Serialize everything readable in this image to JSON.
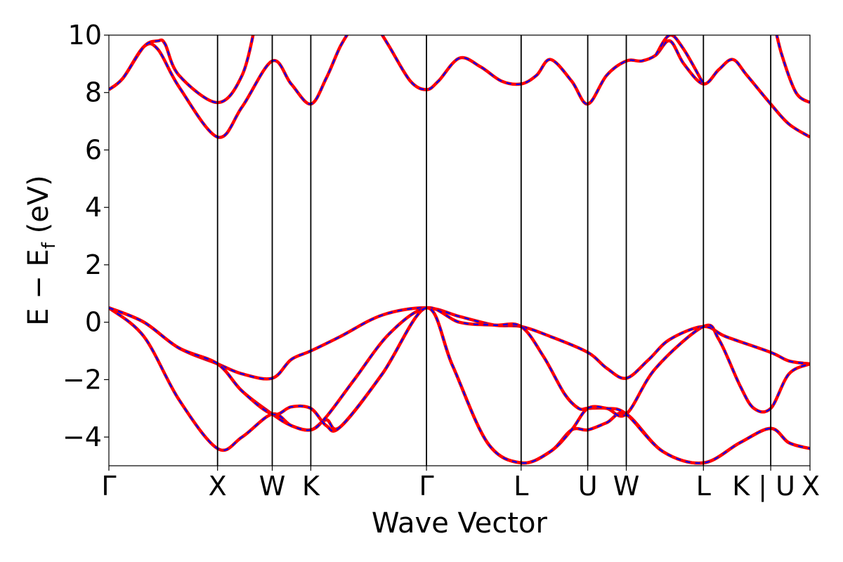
{
  "chart_data": {
    "type": "line",
    "xlabel": "Wave Vector",
    "ylabel": {
      "main": "E − E",
      "subscript": "f",
      "unit": " (eV)"
    },
    "ylim": [
      -5,
      10
    ],
    "xlim": [
      0,
      100
    ],
    "yticks": [
      {
        "value": -4,
        "label": "−4"
      },
      {
        "value": -2,
        "label": "−2"
      },
      {
        "value": 0,
        "label": "0"
      },
      {
        "value": 2,
        "label": "2"
      },
      {
        "value": 4,
        "label": "4"
      },
      {
        "value": 6,
        "label": "6"
      },
      {
        "value": 8,
        "label": "8"
      },
      {
        "value": 10,
        "label": "10"
      }
    ],
    "kpoints": [
      {
        "pos": 0.0,
        "label": "Γ"
      },
      {
        "pos": 15.5,
        "label": "X"
      },
      {
        "pos": 23.3,
        "label": "W"
      },
      {
        "pos": 28.8,
        "label": "K"
      },
      {
        "pos": 45.3,
        "label": "Γ"
      },
      {
        "pos": 58.8,
        "label": "L"
      },
      {
        "pos": 68.3,
        "label": "U"
      },
      {
        "pos": 73.8,
        "label": "W"
      },
      {
        "pos": 84.8,
        "label": "L"
      },
      {
        "pos": 94.4,
        "label": "K | U"
      },
      {
        "pos": 100.0,
        "label": "X"
      }
    ],
    "grid": false,
    "line_colors": {
      "solid": "#ff0000",
      "dashed": "#0000ff"
    },
    "bands": [
      {
        "points": [
          [
            0,
            0.5
          ],
          [
            5,
            -0.5
          ],
          [
            10,
            -2.7
          ],
          [
            15.5,
            -4.4
          ],
          [
            19,
            -4.0
          ],
          [
            23.3,
            -3.2
          ],
          [
            26,
            -3.6
          ],
          [
            28.8,
            -3.75
          ],
          [
            31,
            -3.4
          ],
          [
            33,
            -3.65
          ],
          [
            39,
            -1.8
          ],
          [
            45.3,
            0.5
          ],
          [
            49,
            -1.5
          ],
          [
            54,
            -4.2
          ],
          [
            58.8,
            -4.9
          ],
          [
            63,
            -4.5
          ],
          [
            66,
            -3.75
          ],
          [
            68.3,
            -3.75
          ],
          [
            71,
            -3.5
          ],
          [
            73.8,
            -3.2
          ],
          [
            79,
            -4.5
          ],
          [
            84.8,
            -4.9
          ],
          [
            90,
            -4.2
          ],
          [
            94.4,
            -3.7
          ],
          [
            97,
            -4.2
          ],
          [
            100,
            -4.4
          ]
        ]
      },
      {
        "points": [
          [
            0,
            0.5
          ],
          [
            5,
            0.0
          ],
          [
            10,
            -0.9
          ],
          [
            15.5,
            -1.45
          ],
          [
            19,
            -1.8
          ],
          [
            23.3,
            -1.95
          ],
          [
            26,
            -1.3
          ],
          [
            28.8,
            -1.0
          ],
          [
            33,
            -0.5
          ],
          [
            39,
            0.25
          ],
          [
            45.3,
            0.5
          ],
          [
            50,
            0.2
          ],
          [
            55,
            -0.1
          ],
          [
            58.8,
            -0.15
          ],
          [
            63,
            -0.5
          ],
          [
            68.3,
            -1.05
          ],
          [
            71,
            -1.6
          ],
          [
            73.8,
            -1.95
          ],
          [
            77,
            -1.3
          ],
          [
            80,
            -0.6
          ],
          [
            84.8,
            -0.15
          ],
          [
            88,
            -0.5
          ],
          [
            94.4,
            -1.05
          ],
          [
            97,
            -1.35
          ],
          [
            100,
            -1.45
          ]
        ]
      },
      {
        "points": [
          [
            0,
            0.5
          ],
          [
            5,
            0.0
          ],
          [
            10,
            -0.9
          ],
          [
            15.5,
            -1.45
          ],
          [
            19,
            -2.4
          ],
          [
            23.3,
            -3.2
          ],
          [
            26,
            -3.6
          ],
          [
            28.8,
            -3.75
          ],
          [
            31,
            -3.3
          ],
          [
            35,
            -2.0
          ],
          [
            40,
            -0.4
          ],
          [
            45.3,
            0.5
          ],
          [
            50,
            0.0
          ],
          [
            55,
            -0.1
          ],
          [
            58.8,
            -0.15
          ],
          [
            62,
            -1.2
          ],
          [
            65,
            -2.5
          ],
          [
            67,
            -3.0
          ],
          [
            68.3,
            -3.0
          ],
          [
            71,
            -3.0
          ],
          [
            73.8,
            -3.2
          ],
          [
            78,
            -1.6
          ],
          [
            84.8,
            -0.15
          ],
          [
            87,
            -0.6
          ],
          [
            90,
            -2.2
          ],
          [
            92,
            -3.0
          ],
          [
            94.4,
            -3.0
          ],
          [
            97,
            -1.8
          ],
          [
            100,
            -1.45
          ]
        ]
      },
      {
        "points": [
          [
            0,
            0.5
          ],
          [
            5,
            0.0
          ],
          [
            10,
            -0.9
          ],
          [
            15.5,
            -1.45
          ],
          [
            19,
            -2.4
          ],
          [
            23.3,
            -3.2
          ],
          [
            26,
            -2.95
          ],
          [
            28.8,
            -3.0
          ],
          [
            31,
            -3.6
          ],
          [
            33,
            -3.65
          ],
          [
            39,
            -1.8
          ],
          [
            45.3,
            0.5
          ],
          [
            49,
            -1.5
          ],
          [
            54,
            -4.2
          ],
          [
            58.8,
            -4.9
          ],
          [
            63,
            -4.5
          ],
          [
            66,
            -3.75
          ],
          [
            68.3,
            -3.0
          ],
          [
            71,
            -3.0
          ],
          [
            73.8,
            -3.2
          ],
          [
            79,
            -4.5
          ],
          [
            84.8,
            -4.9
          ],
          [
            90,
            -4.2
          ],
          [
            94.4,
            -3.7
          ],
          [
            97,
            -4.2
          ],
          [
            100,
            -4.4
          ]
        ]
      },
      {
        "points": [
          [
            0,
            8.1
          ],
          [
            2,
            8.5
          ],
          [
            5,
            9.6
          ],
          [
            7,
            9.5
          ],
          [
            10,
            8.2
          ],
          [
            15.5,
            6.45
          ],
          [
            19,
            7.5
          ],
          [
            23.3,
            9.1
          ],
          [
            26,
            8.3
          ],
          [
            28.8,
            7.6
          ],
          [
            31,
            8.5
          ],
          [
            33,
            9.6
          ],
          [
            35,
            10.4
          ]
        ]
      },
      {
        "points": [
          [
            0,
            8.1
          ],
          [
            2,
            8.5
          ],
          [
            5,
            9.6
          ],
          [
            7,
            9.8
          ],
          [
            8,
            9.7
          ],
          [
            10,
            8.6
          ],
          [
            15.5,
            7.65
          ],
          [
            19,
            8.6
          ],
          [
            21,
            10.5
          ]
        ]
      },
      {
        "points": [
          [
            38,
            10.4
          ],
          [
            40,
            9.6
          ],
          [
            43,
            8.4
          ],
          [
            45.3,
            8.1
          ],
          [
            47,
            8.4
          ],
          [
            50,
            9.2
          ],
          [
            53,
            8.9
          ],
          [
            56,
            8.4
          ],
          [
            58.8,
            8.3
          ],
          [
            61,
            8.6
          ],
          [
            63,
            9.15
          ],
          [
            66,
            8.4
          ],
          [
            68.3,
            7.6
          ],
          [
            71,
            8.6
          ],
          [
            73.8,
            9.1
          ],
          [
            76,
            9.1
          ],
          [
            78,
            9.3
          ],
          [
            80,
            9.8
          ],
          [
            82,
            9.0
          ],
          [
            84.8,
            8.3
          ],
          [
            87,
            8.8
          ],
          [
            89,
            9.15
          ],
          [
            91,
            8.6
          ],
          [
            94.4,
            7.6
          ],
          [
            97,
            6.9
          ],
          [
            100,
            6.45
          ]
        ]
      },
      {
        "points": [
          [
            78,
            9.3
          ],
          [
            80,
            10.0
          ],
          [
            82,
            9.5
          ],
          [
            84.8,
            8.3
          ]
        ]
      },
      {
        "points": [
          [
            94.9,
            10.4
          ],
          [
            96,
            9.3
          ],
          [
            98,
            8.0
          ],
          [
            100,
            7.65
          ]
        ]
      }
    ]
  }
}
